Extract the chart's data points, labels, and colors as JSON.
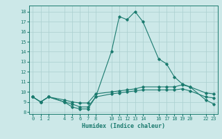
{
  "xlabel": "Humidex (Indice chaleur)",
  "bg_color": "#cce8e8",
  "grid_color": "#aacfcf",
  "line_color": "#1a7a6e",
  "xlim": [
    -0.5,
    23.5
  ],
  "ylim": [
    7.8,
    18.6
  ],
  "xticks": [
    0,
    1,
    2,
    4,
    5,
    6,
    7,
    8,
    10,
    11,
    12,
    13,
    14,
    16,
    17,
    18,
    19,
    20,
    22,
    23
  ],
  "yticks": [
    8,
    9,
    10,
    11,
    12,
    13,
    14,
    15,
    16,
    17,
    18
  ],
  "series": {
    "max": {
      "x": [
        0,
        1,
        2,
        4,
        5,
        6,
        7,
        8,
        10,
        11,
        12,
        13,
        14,
        16,
        17,
        18,
        19,
        20,
        22,
        23
      ],
      "y": [
        9.5,
        9.0,
        9.5,
        9.0,
        8.5,
        8.3,
        8.3,
        9.5,
        14.0,
        17.5,
        17.2,
        18.0,
        17.0,
        13.3,
        12.8,
        11.5,
        10.8,
        10.5,
        9.2,
        8.8
      ]
    },
    "mean": {
      "x": [
        0,
        1,
        2,
        4,
        5,
        6,
        7,
        8,
        10,
        11,
        12,
        13,
        14,
        16,
        17,
        18,
        19,
        20,
        22,
        23
      ],
      "y": [
        9.5,
        9.0,
        9.5,
        9.2,
        9.0,
        8.9,
        8.9,
        9.8,
        10.0,
        10.1,
        10.2,
        10.3,
        10.5,
        10.5,
        10.5,
        10.5,
        10.7,
        10.5,
        9.9,
        9.8
      ]
    },
    "min": {
      "x": [
        0,
        1,
        2,
        4,
        5,
        6,
        7,
        8,
        10,
        11,
        12,
        13,
        14,
        16,
        17,
        18,
        19,
        20,
        22,
        23
      ],
      "y": [
        9.5,
        9.0,
        9.5,
        9.0,
        8.8,
        8.5,
        8.5,
        9.5,
        9.8,
        9.9,
        10.0,
        10.1,
        10.2,
        10.2,
        10.2,
        10.2,
        10.3,
        10.1,
        9.5,
        9.4
      ]
    }
  }
}
